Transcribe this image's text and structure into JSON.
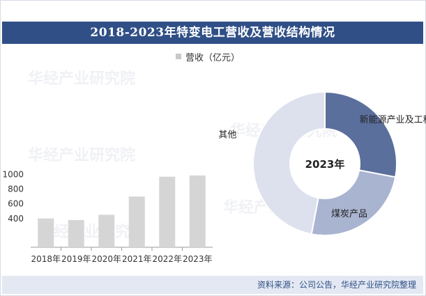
{
  "title": "2018-2023年特变电工营收及营收结构情况",
  "legend": {
    "label": "营收（亿元）",
    "color": "#c9c9c9"
  },
  "footer": {
    "source": "资料来源：公司公告，华经产业研究院整理"
  },
  "watermark": "华经产业研究院",
  "chart_data": [
    {
      "type": "bar",
      "categories": [
        "2018年",
        "2019年",
        "2020年",
        "2021年",
        "2022年",
        "2023年"
      ],
      "series": [
        {
          "name": "营收（亿元）",
          "values": [
            392,
            370,
            442,
            690,
            960,
            977
          ],
          "color": "#d5d5d5"
        }
      ],
      "yticks": [
        "400",
        "600",
        "800",
        "1000"
      ],
      "ylim": [
        0,
        1100
      ]
    },
    {
      "type": "pie",
      "center_label": "2023年",
      "labels": [
        "新能源产业及工程",
        "煤炭产品",
        "其他"
      ],
      "values": [
        28,
        25,
        47
      ],
      "colors": [
        "#5b6f9c",
        "#a9b4d1",
        "#dde1ee"
      ]
    }
  ]
}
